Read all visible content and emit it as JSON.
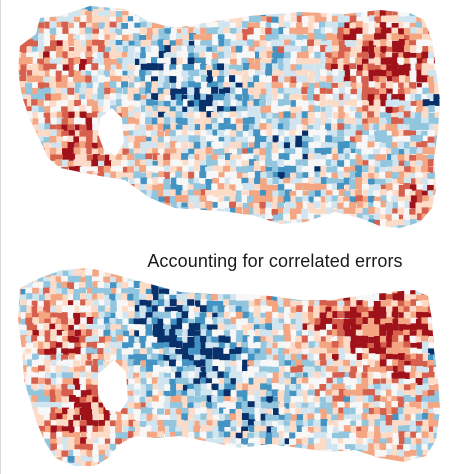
{
  "caption": "Accounting for correlated errors",
  "palette": {
    "deep_red": "#a0121a",
    "red": "#d6604d",
    "light_red": "#f4a582",
    "pale_red": "#fddbc7",
    "white": "#f7f7f7",
    "pale_blue": "#d1e5f0",
    "light_blue": "#92c5de",
    "blue": "#4393c3",
    "deep_blue": "#08306b"
  },
  "panels": [
    {
      "name": "top-map",
      "seed": 11
    },
    {
      "name": "bottom-map",
      "seed": 57
    }
  ]
}
